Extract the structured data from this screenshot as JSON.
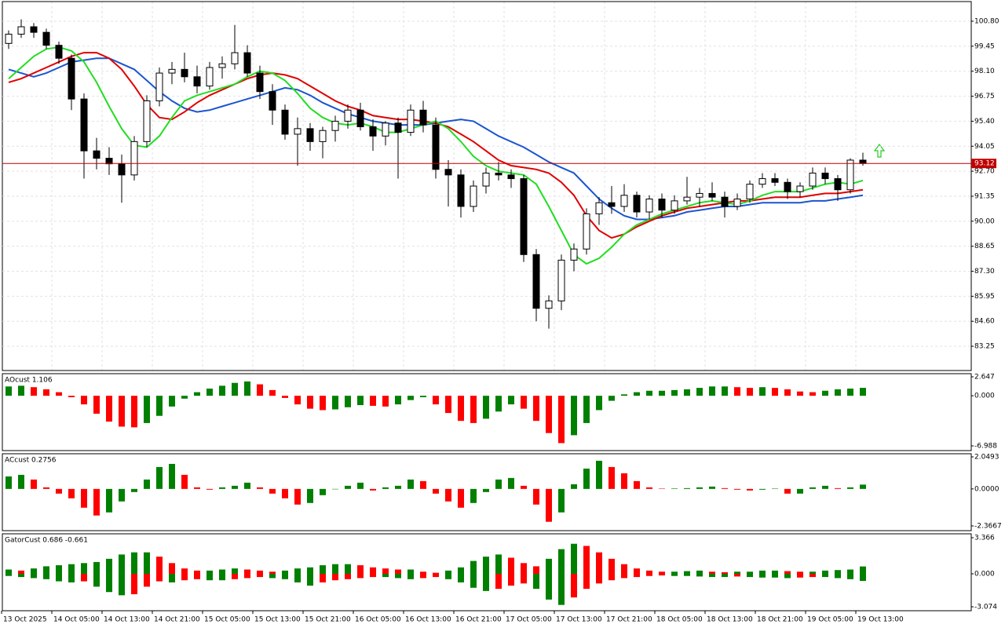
{
  "chart_data": [
    {
      "type": "candlestick",
      "ohlc": [
        [
          99.6,
          100.3,
          99.3,
          100.1
        ],
        [
          100.1,
          100.9,
          99.9,
          100.5
        ],
        [
          100.5,
          100.7,
          99.9,
          100.2
        ],
        [
          100.2,
          100.4,
          99.3,
          99.5
        ],
        [
          99.5,
          99.7,
          98.5,
          98.8
        ],
        [
          98.8,
          99.0,
          96.0,
          96.6
        ],
        [
          96.6,
          96.9,
          92.3,
          93.8
        ],
        [
          93.8,
          94.5,
          92.8,
          93.4
        ],
        [
          93.4,
          94.0,
          92.5,
          93.1
        ],
        [
          93.1,
          93.6,
          91.0,
          92.5
        ],
        [
          92.5,
          94.6,
          92.2,
          94.3
        ],
        [
          94.3,
          96.8,
          94.0,
          96.5
        ],
        [
          96.5,
          98.3,
          96.2,
          98.0
        ],
        [
          98.0,
          98.6,
          97.4,
          98.2
        ],
        [
          98.2,
          99.1,
          97.5,
          97.8
        ],
        [
          97.8,
          98.4,
          96.9,
          97.3
        ],
        [
          97.3,
          98.6,
          97.1,
          98.3
        ],
        [
          98.3,
          98.9,
          97.7,
          98.5
        ],
        [
          98.5,
          100.6,
          98.2,
          99.1
        ],
        [
          99.1,
          99.5,
          97.8,
          98.0
        ],
        [
          98.0,
          98.4,
          96.6,
          97.0
        ],
        [
          97.0,
          97.4,
          95.2,
          96.0
        ],
        [
          96.0,
          96.3,
          94.4,
          94.7
        ],
        [
          94.7,
          95.6,
          93.0,
          95.0
        ],
        [
          95.0,
          95.3,
          93.8,
          94.3
        ],
        [
          94.3,
          95.1,
          93.4,
          94.9
        ],
        [
          94.9,
          95.7,
          94.3,
          95.4
        ],
        [
          95.4,
          96.3,
          95.0,
          96.0
        ],
        [
          96.0,
          96.4,
          94.9,
          95.1
        ],
        [
          95.1,
          95.5,
          93.8,
          94.6
        ],
        [
          94.6,
          95.4,
          94.1,
          95.3
        ],
        [
          95.3,
          95.6,
          92.3,
          94.8
        ],
        [
          94.8,
          96.3,
          94.6,
          96.0
        ],
        [
          96.0,
          96.5,
          94.8,
          95.2
        ],
        [
          95.2,
          95.6,
          92.3,
          92.8
        ],
        [
          92.8,
          93.3,
          90.8,
          92.5
        ],
        [
          92.5,
          92.8,
          90.2,
          90.8
        ],
        [
          90.8,
          92.2,
          90.5,
          91.9
        ],
        [
          91.9,
          92.9,
          91.5,
          92.6
        ],
        [
          92.6,
          93.2,
          92.2,
          92.5
        ],
        [
          92.5,
          92.8,
          91.8,
          92.3
        ],
        [
          92.3,
          92.5,
          87.8,
          88.2
        ],
        [
          88.2,
          88.5,
          84.6,
          85.3
        ],
        [
          85.3,
          86.0,
          84.2,
          85.7
        ],
        [
          85.7,
          88.2,
          85.2,
          87.9
        ],
        [
          87.9,
          88.8,
          87.3,
          88.5
        ],
        [
          88.5,
          90.7,
          88.2,
          90.4
        ],
        [
          90.4,
          91.3,
          89.8,
          91.0
        ],
        [
          91.0,
          91.9,
          90.4,
          90.8
        ],
        [
          90.8,
          92.0,
          90.5,
          91.4
        ],
        [
          91.4,
          91.6,
          90.2,
          90.5
        ],
        [
          90.5,
          91.4,
          90.1,
          91.2
        ],
        [
          91.2,
          91.5,
          90.2,
          90.6
        ],
        [
          90.6,
          91.4,
          90.4,
          91.1
        ],
        [
          91.1,
          92.4,
          90.9,
          91.3
        ],
        [
          91.3,
          91.8,
          90.8,
          91.5
        ],
        [
          91.5,
          92.1,
          91.1,
          91.3
        ],
        [
          91.3,
          91.6,
          90.2,
          90.8
        ],
        [
          90.8,
          91.5,
          90.6,
          91.2
        ],
        [
          91.2,
          92.2,
          91.0,
          92.0
        ],
        [
          92.0,
          92.6,
          91.8,
          92.3
        ],
        [
          92.3,
          92.6,
          91.9,
          92.1
        ],
        [
          92.1,
          92.3,
          91.2,
          91.6
        ],
        [
          91.6,
          92.1,
          91.3,
          91.9
        ],
        [
          91.9,
          92.9,
          91.7,
          92.6
        ],
        [
          92.6,
          92.9,
          92.0,
          92.3
        ],
        [
          92.3,
          92.5,
          91.1,
          91.7
        ],
        [
          91.7,
          93.4,
          91.5,
          93.3
        ],
        [
          93.3,
          93.7,
          93.0,
          93.12
        ]
      ],
      "up_color": "#ffffff",
      "down_color": "#000000",
      "lines": [
        {
          "color": "#1a55d0",
          "values": [
            98.2,
            98.0,
            97.8,
            98.0,
            98.3,
            98.6,
            98.7,
            98.8,
            98.8,
            98.5,
            98.2,
            97.6,
            97.0,
            96.5,
            96.1,
            95.9,
            96.0,
            96.2,
            96.4,
            96.6,
            96.8,
            97.0,
            97.2,
            97.1,
            96.8,
            96.4,
            96.1,
            95.8,
            95.6,
            95.4,
            95.3,
            95.2,
            95.2,
            95.2,
            95.3,
            95.4,
            95.5,
            95.4,
            95.0,
            94.6,
            94.3,
            94.0,
            93.6,
            93.2,
            92.9,
            92.6,
            91.9,
            91.2,
            90.7,
            90.3,
            90.1,
            90.1,
            90.2,
            90.3,
            90.5,
            90.6,
            90.7,
            90.8,
            90.8,
            90.9,
            91.0,
            91.0,
            91.0,
            91.0,
            91.1,
            91.1,
            91.2,
            91.3,
            91.4
          ]
        },
        {
          "color": "#e00000",
          "values": [
            97.5,
            97.7,
            98.0,
            98.3,
            98.6,
            98.9,
            99.1,
            99.1,
            98.8,
            98.2,
            97.3,
            96.3,
            95.6,
            95.5,
            95.9,
            96.4,
            96.8,
            97.1,
            97.4,
            97.7,
            97.9,
            98.0,
            97.9,
            97.7,
            97.3,
            96.9,
            96.5,
            96.2,
            96.0,
            95.7,
            95.6,
            95.5,
            95.5,
            95.4,
            95.3,
            95.1,
            94.7,
            94.3,
            93.8,
            93.3,
            93.0,
            92.9,
            92.8,
            92.6,
            92.1,
            91.4,
            90.3,
            89.5,
            89.1,
            89.3,
            89.7,
            90.0,
            90.3,
            90.5,
            90.7,
            90.8,
            90.9,
            91.0,
            91.1,
            91.1,
            91.2,
            91.3,
            91.3,
            91.3,
            91.4,
            91.5,
            91.5,
            91.6,
            91.7
          ]
        },
        {
          "color": "#22dd22",
          "values": [
            97.7,
            98.3,
            98.9,
            99.3,
            99.4,
            99.2,
            98.6,
            97.5,
            96.2,
            95.0,
            94.1,
            94.0,
            94.6,
            95.6,
            96.5,
            96.8,
            97.0,
            97.2,
            97.4,
            97.8,
            98.1,
            98.0,
            97.6,
            96.9,
            96.1,
            95.6,
            95.3,
            95.2,
            95.3,
            95.1,
            94.8,
            94.8,
            95.0,
            95.2,
            95.4,
            95.0,
            94.3,
            93.5,
            93.0,
            92.7,
            92.6,
            92.5,
            92.0,
            90.8,
            89.5,
            88.2,
            87.7,
            88.0,
            88.6,
            89.3,
            89.8,
            90.1,
            90.4,
            90.6,
            90.8,
            91.0,
            91.1,
            91.0,
            90.9,
            91.1,
            91.4,
            91.6,
            91.6,
            91.6,
            91.8,
            92.0,
            92.1,
            92.0,
            92.2
          ]
        }
      ],
      "current_price": 93.12,
      "current_price_color": "#c00000",
      "ylim": [
        81.94,
        101.86
      ],
      "yticks": [
        {
          "value": 100.8,
          "label": "100.80"
        },
        99.45,
        {
          "value": 98.1,
          "label": "98.10"
        },
        96.75,
        {
          "value": 95.4,
          "label": "95.40"
        },
        {
          "value": 94.05,
          "label": "94.05"
        },
        {
          "value": 92.7,
          "label": "92.70"
        },
        91.35,
        {
          "value": 90,
          "label": "90.00"
        },
        88.65,
        {
          "value": 87.3,
          "label": "87.30"
        },
        85.95,
        {
          "value": 84.6,
          "label": "84.60"
        },
        83.25
      ],
      "grid": true
    },
    {
      "type": "histogram",
      "title": "AOcust 1.106",
      "up_color": "#008000",
      "down_color": "#ff0000",
      "values": [
        1.3,
        1.4,
        1.2,
        0.9,
        0.5,
        -0.2,
        -1.2,
        -2.5,
        -3.6,
        -4.3,
        -4.4,
        -3.8,
        -2.8,
        -1.5,
        -0.4,
        0.5,
        1.0,
        1.4,
        1.8,
        2.0,
        1.6,
        0.8,
        -0.3,
        -1.2,
        -1.8,
        -2.0,
        -1.9,
        -1.6,
        -1.3,
        -1.4,
        -1.5,
        -1.2,
        -0.6,
        -0.2,
        -1.2,
        -2.4,
        -3.5,
        -3.8,
        -3.2,
        -2.2,
        -1.2,
        -1.8,
        -3.5,
        -5.2,
        -6.6,
        -5.5,
        -3.8,
        -2.0,
        -0.7,
        0.2,
        0.5,
        0.7,
        0.7,
        0.8,
        0.9,
        1.1,
        1.3,
        1.3,
        1.2,
        1.1,
        1.2,
        1.1,
        0.9,
        0.6,
        0.5,
        0.7,
        0.9,
        1.0,
        1.106
      ],
      "ylim": [
        -7.645,
        3.085
      ],
      "yticks": [
        2.647,
        {
          "value": 0,
          "label": "0.000"
        },
        -6.988
      ]
    },
    {
      "type": "histogram",
      "title": "ACcust 0.2756",
      "up_color": "#008000",
      "down_color": "#ff0000",
      "values": [
        0.8,
        0.9,
        0.6,
        0.1,
        -0.3,
        -0.6,
        -1.2,
        -1.7,
        -1.5,
        -0.8,
        -0.2,
        0.6,
        1.4,
        1.6,
        0.9,
        0.1,
        -0.05,
        0.1,
        0.2,
        0.4,
        0.1,
        -0.3,
        -0.6,
        -1.0,
        -0.9,
        -0.4,
        0.0,
        0.2,
        0.4,
        -0.1,
        0.1,
        0.2,
        0.6,
        0.5,
        -0.3,
        -0.8,
        -1.2,
        -0.9,
        -0.2,
        0.6,
        0.7,
        0.2,
        -1.0,
        -2.1,
        -1.5,
        0.3,
        1.3,
        1.8,
        1.4,
        1.0,
        0.5,
        0.1,
        0.02,
        0.03,
        0.05,
        0.1,
        0.15,
        0.05,
        -0.05,
        -0.1,
        -0.05,
        0.02,
        -0.3,
        -0.3,
        0.1,
        0.2,
        0.05,
        0.1,
        0.2756
      ],
      "ylim": [
        -2.668,
        2.25
      ],
      "yticks": [
        2.0493,
        {
          "value": 0,
          "label": "0.0000"
        },
        -2.3667
      ]
    },
    {
      "type": "gator",
      "title": "GatorCust 0.686 -0.661",
      "up_color": "#008000",
      "down_color": "#ff0000",
      "upper": [
        0.4,
        0.3,
        0.5,
        0.7,
        0.8,
        0.9,
        1.0,
        1.1,
        1.4,
        1.8,
        2.0,
        2.0,
        1.6,
        1.0,
        0.5,
        0.3,
        0.3,
        0.4,
        0.5,
        0.4,
        0.3,
        0.2,
        0.3,
        0.5,
        0.6,
        0.8,
        0.9,
        0.9,
        0.8,
        0.6,
        0.5,
        0.4,
        0.4,
        0.2,
        0.1,
        0.3,
        0.6,
        1.2,
        1.6,
        1.8,
        1.5,
        1.0,
        0.7,
        1.4,
        2.3,
        2.8,
        2.6,
        2.0,
        1.4,
        0.9,
        0.5,
        0.3,
        0.2,
        0.2,
        0.25,
        0.3,
        0.2,
        0.15,
        0.2,
        0.2,
        0.3,
        0.3,
        0.25,
        0.2,
        0.2,
        0.3,
        0.35,
        0.4,
        0.686
      ],
      "lower": [
        -0.2,
        -0.3,
        -0.4,
        -0.5,
        -0.7,
        -0.8,
        -0.7,
        -1.2,
        -1.7,
        -2.0,
        -1.9,
        -1.2,
        -0.7,
        -0.8,
        -0.6,
        -0.5,
        -0.6,
        -0.6,
        -0.5,
        -0.4,
        -0.3,
        -0.4,
        -0.5,
        -0.8,
        -1.1,
        -0.8,
        -0.6,
        -0.5,
        -0.4,
        -0.3,
        -0.3,
        -0.4,
        -0.5,
        -0.4,
        -0.3,
        -0.5,
        -0.8,
        -1.3,
        -1.6,
        -1.4,
        -1.1,
        -0.9,
        -1.4,
        -2.4,
        -2.9,
        -2.2,
        -1.4,
        -0.9,
        -0.6,
        -0.4,
        -0.3,
        -0.2,
        -0.15,
        -0.2,
        -0.2,
        -0.25,
        -0.3,
        -0.3,
        -0.25,
        -0.3,
        -0.35,
        -0.35,
        -0.4,
        -0.35,
        -0.3,
        -0.3,
        -0.4,
        -0.5,
        -0.661
      ],
      "ylim": [
        -3.44,
        3.73
      ],
      "yticks": [
        3.366,
        {
          "value": 0,
          "label": "0.000"
        },
        -3.074
      ]
    }
  ],
  "time_axis": [
    "13 Oct 2025",
    "14 Oct 05:00",
    "14 Oct 13:00",
    "14 Oct 21:00",
    "15 Oct 05:00",
    "15 Oct 13:00",
    "15 Oct 21:00",
    "16 Oct 05:00",
    "16 Oct 13:00",
    "16 Oct 21:00",
    "17 Oct 05:00",
    "17 Oct 13:00",
    "17 Oct 21:00",
    "18 Oct 05:00",
    "18 Oct 13:00",
    "18 Oct 21:00",
    "19 Oct 05:00",
    "19 Oct 13:00"
  ]
}
